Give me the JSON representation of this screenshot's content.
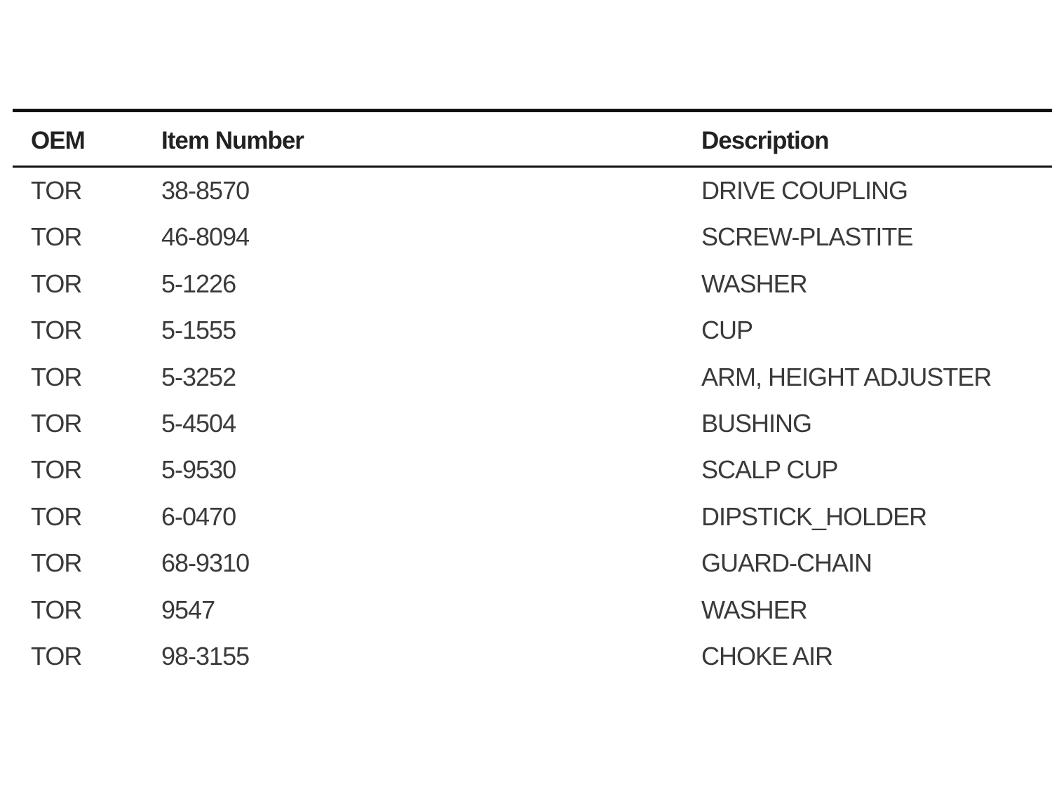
{
  "table": {
    "headers": [
      "OEM",
      "Item Number",
      "Description"
    ],
    "rows": [
      [
        "TOR",
        "38-8570",
        "DRIVE COUPLING"
      ],
      [
        "TOR",
        "46-8094",
        "SCREW-PLASTITE"
      ],
      [
        "TOR",
        "5-1226",
        "WASHER"
      ],
      [
        "TOR",
        "5-1555",
        "CUP"
      ],
      [
        "TOR",
        "5-3252",
        "ARM, HEIGHT ADJUSTER"
      ],
      [
        "TOR",
        "5-4504",
        "BUSHING"
      ],
      [
        "TOR",
        "5-9530",
        "SCALP CUP"
      ],
      [
        "TOR",
        "6-0470",
        "DIPSTICK_HOLDER"
      ],
      [
        "TOR",
        "68-9310",
        "GUARD-CHAIN"
      ],
      [
        "TOR",
        "9547",
        "WASHER"
      ],
      [
        "TOR",
        "98-3155",
        "CHOKE AIR"
      ]
    ]
  }
}
